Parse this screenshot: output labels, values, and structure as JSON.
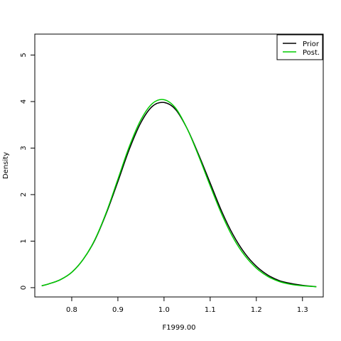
{
  "chart_data": {
    "type": "line",
    "xlabel": "F1999.00",
    "ylabel": "Density",
    "xlim": [
      0.72,
      1.345
    ],
    "ylim": [
      -0.2,
      5.45
    ],
    "x_ticks": [
      0.8,
      0.9,
      1.0,
      1.1,
      1.2,
      1.3
    ],
    "x_tick_labels": [
      "0.8",
      "0.9",
      "1.0",
      "1.1",
      "1.2",
      "1.3"
    ],
    "y_ticks": [
      0,
      1,
      2,
      3,
      4,
      5
    ],
    "y_tick_labels": [
      "0",
      "1",
      "2",
      "3",
      "4",
      "5"
    ],
    "grid": false,
    "legend_position": "top-right",
    "series": [
      {
        "name": "Prior",
        "color": "#000000",
        "x": [
          0.735,
          0.75,
          0.775,
          0.8,
          0.825,
          0.85,
          0.875,
          0.9,
          0.925,
          0.95,
          0.975,
          1.0,
          1.025,
          1.05,
          1.075,
          1.1,
          1.125,
          1.15,
          1.175,
          1.2,
          1.225,
          1.25,
          1.275,
          1.3,
          1.33
        ],
        "values": [
          0.04,
          0.08,
          0.17,
          0.33,
          0.61,
          1.02,
          1.6,
          2.28,
          2.98,
          3.55,
          3.9,
          3.98,
          3.83,
          3.42,
          2.86,
          2.25,
          1.64,
          1.13,
          0.74,
          0.46,
          0.27,
          0.15,
          0.09,
          0.05,
          0.02
        ]
      },
      {
        "name": "Post.",
        "color": "#00cc00",
        "x": [
          0.735,
          0.75,
          0.775,
          0.8,
          0.825,
          0.85,
          0.875,
          0.9,
          0.925,
          0.95,
          0.975,
          1.0,
          1.025,
          1.05,
          1.075,
          1.1,
          1.125,
          1.15,
          1.175,
          1.2,
          1.225,
          1.25,
          1.275,
          1.3,
          1.33
        ],
        "values": [
          0.04,
          0.08,
          0.17,
          0.33,
          0.61,
          1.03,
          1.62,
          2.33,
          3.04,
          3.61,
          3.96,
          4.04,
          3.86,
          3.42,
          2.83,
          2.19,
          1.58,
          1.07,
          0.69,
          0.42,
          0.24,
          0.13,
          0.07,
          0.04,
          0.02
        ]
      }
    ]
  }
}
